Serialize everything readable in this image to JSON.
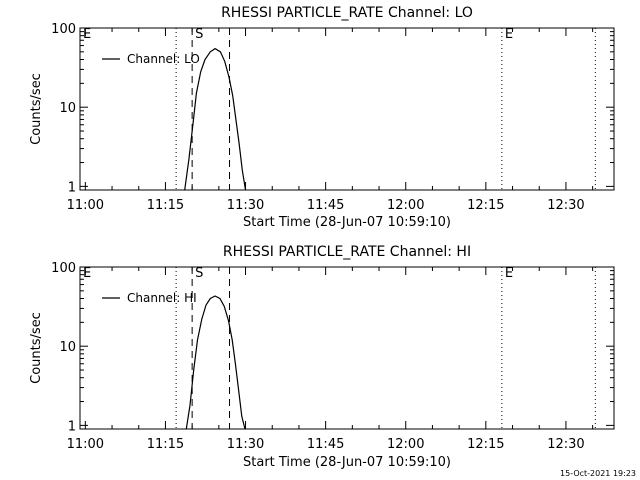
{
  "footer_timestamp": "15-Oct-2021 19:23",
  "chart_data": [
    {
      "type": "line",
      "title": "RHESSI PARTICLE_RATE Channel: LO",
      "xlabel": "Start Time (28-Jun-07 10:59:10)",
      "ylabel": "Counts/sec",
      "yscale": "log",
      "ylim": [
        0.9,
        100
      ],
      "xlim_minutes": [
        -1,
        99
      ],
      "x_ticks": [
        {
          "t": 0,
          "label": "11:00"
        },
        {
          "t": 15,
          "label": "11:15"
        },
        {
          "t": 30,
          "label": "11:30"
        },
        {
          "t": 45,
          "label": "11:45"
        },
        {
          "t": 60,
          "label": "12:00"
        },
        {
          "t": 75,
          "label": "12:15"
        },
        {
          "t": 90,
          "label": "12:30"
        }
      ],
      "y_ticks": [
        {
          "v": 1,
          "label": "1"
        },
        {
          "v": 10,
          "label": "10"
        },
        {
          "v": 100,
          "label": "100"
        }
      ],
      "legend": {
        "label": "Channel: LO",
        "position": "top-left"
      },
      "markers": [
        {
          "t": -1,
          "label": "E",
          "style": "dotted"
        },
        {
          "t": 17,
          "label": "",
          "style": "dotted"
        },
        {
          "t": 20,
          "label": "S",
          "style": "dashed"
        },
        {
          "t": 27,
          "label": "",
          "style": "dashed"
        },
        {
          "t": 78,
          "label": "E",
          "style": "dotted"
        },
        {
          "t": 95.5,
          "label": "",
          "style": "dotted"
        }
      ],
      "series": [
        {
          "name": "Channel: LO",
          "x": [
            18.6,
            19.4,
            20.2,
            20.8,
            21.6,
            22.4,
            23.4,
            24.3,
            25.3,
            26.1,
            26.9,
            27.6,
            28.2,
            28.8,
            29.4,
            30.0
          ],
          "y": [
            0.9,
            2.2,
            6.5,
            15,
            28,
            40,
            50,
            55,
            50,
            38,
            24,
            14,
            7,
            3.5,
            1.6,
            0.9
          ]
        }
      ]
    },
    {
      "type": "line",
      "title": "RHESSI PARTICLE_RATE Channel: HI",
      "xlabel": "Start Time (28-Jun-07 10:59:10)",
      "ylabel": "Counts/sec",
      "yscale": "log",
      "ylim": [
        0.9,
        100
      ],
      "xlim_minutes": [
        -1,
        99
      ],
      "x_ticks": [
        {
          "t": 0,
          "label": "11:00"
        },
        {
          "t": 15,
          "label": "11:15"
        },
        {
          "t": 30,
          "label": "11:30"
        },
        {
          "t": 45,
          "label": "11:45"
        },
        {
          "t": 60,
          "label": "12:00"
        },
        {
          "t": 75,
          "label": "12:15"
        },
        {
          "t": 90,
          "label": "12:30"
        }
      ],
      "y_ticks": [
        {
          "v": 1,
          "label": "1"
        },
        {
          "v": 10,
          "label": "10"
        },
        {
          "v": 100,
          "label": "100"
        }
      ],
      "legend": {
        "label": "Channel: HI",
        "position": "top-left"
      },
      "markers": [
        {
          "t": -1,
          "label": "E",
          "style": "dotted"
        },
        {
          "t": 17,
          "label": "",
          "style": "dotted"
        },
        {
          "t": 20,
          "label": "S",
          "style": "dashed"
        },
        {
          "t": 27,
          "label": "",
          "style": "dashed"
        },
        {
          "t": 78,
          "label": "E",
          "style": "dotted"
        },
        {
          "t": 95.5,
          "label": "",
          "style": "dotted"
        }
      ],
      "series": [
        {
          "name": "Channel: HI",
          "x": [
            18.9,
            19.6,
            20.3,
            21.0,
            21.8,
            22.6,
            23.4,
            24.3,
            25.2,
            26.0,
            26.8,
            27.5,
            28.1,
            28.7,
            29.3,
            29.9
          ],
          "y": [
            0.9,
            1.8,
            5,
            12,
            22,
            33,
            40,
            43,
            40,
            32,
            21,
            12,
            6,
            2.8,
            1.3,
            0.9
          ]
        }
      ]
    }
  ]
}
